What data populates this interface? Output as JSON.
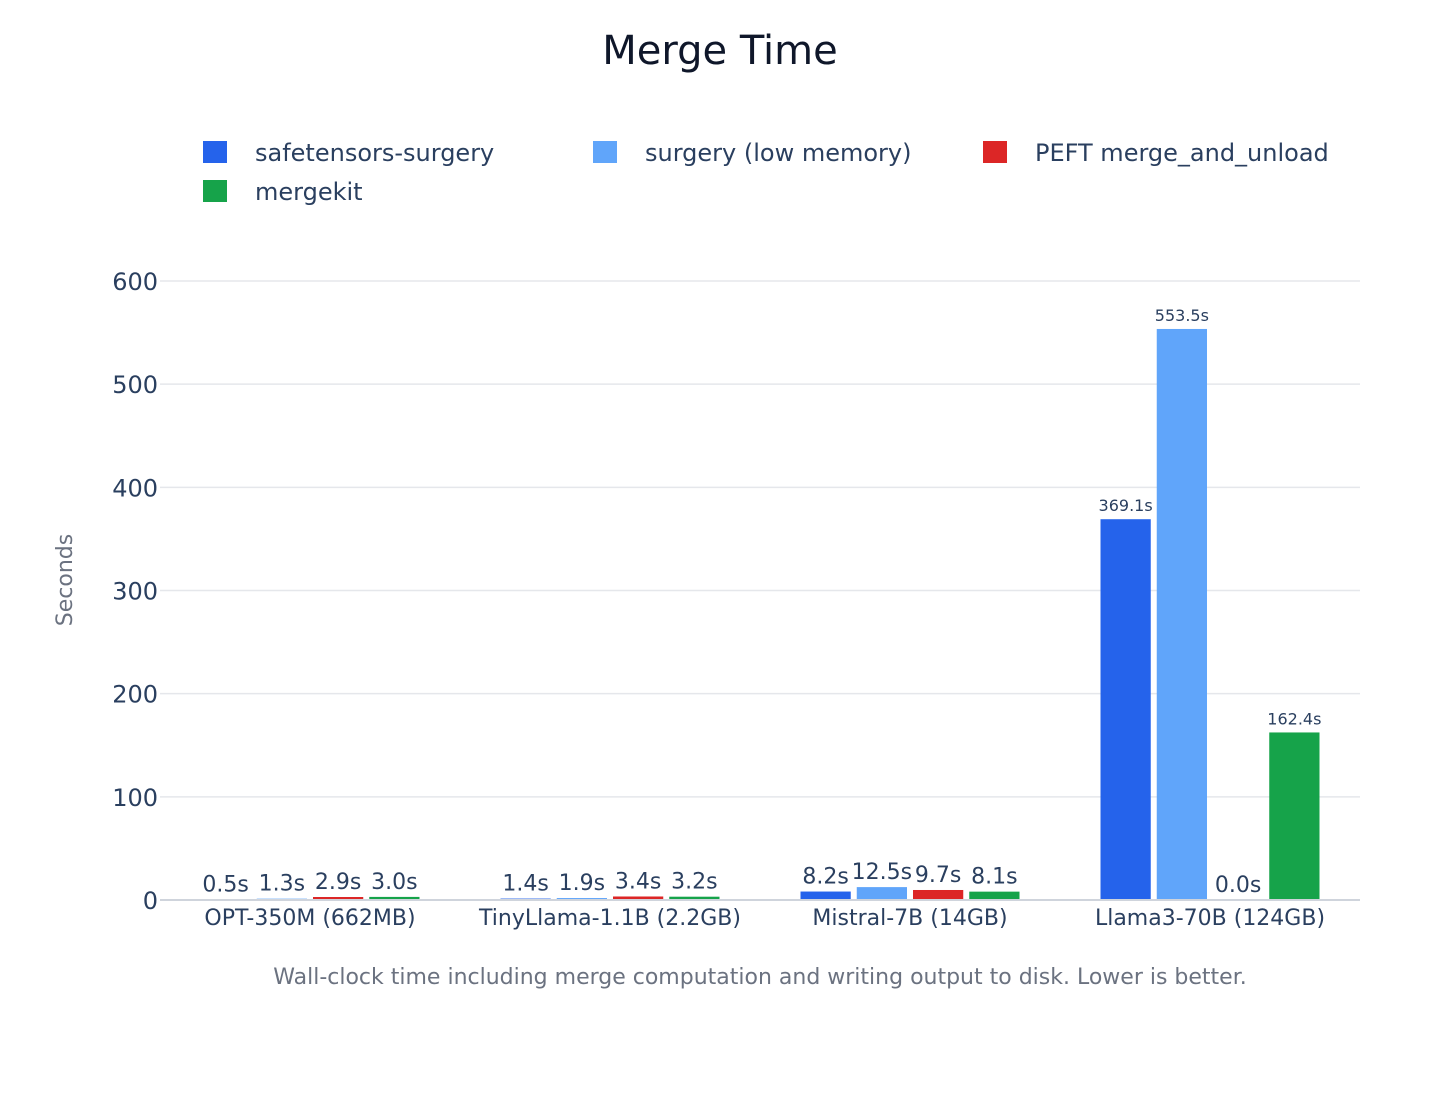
{
  "chart_data": {
    "type": "bar",
    "title": "Merge Time",
    "ylabel": "Seconds",
    "xlabel": "Wall-clock time including merge computation and writing output to disk. Lower is better.",
    "categories": [
      "OPT-350M (662MB)",
      "TinyLlama-1.1B (2.2GB)",
      "Mistral-7B (14GB)",
      "Llama3-70B (124GB)"
    ],
    "ylim": [
      0,
      600
    ],
    "yticks": [
      0,
      100,
      200,
      300,
      400,
      500,
      600
    ],
    "grid": true,
    "legend_position": "top",
    "series": [
      {
        "name": "safetensors-surgery",
        "color": "#2563eb",
        "values": [
          0.5,
          1.4,
          8.2,
          369.1
        ],
        "labels": [
          "0.5s",
          "1.4s",
          "8.2s",
          "369.1s"
        ]
      },
      {
        "name": "surgery (low memory)",
        "color": "#60a5fa",
        "values": [
          1.3,
          1.9,
          12.5,
          553.5
        ],
        "labels": [
          "1.3s",
          "1.9s",
          "12.5s",
          "553.5s"
        ]
      },
      {
        "name": "PEFT merge_and_unload",
        "color": "#dc2626",
        "values": [
          2.9,
          3.4,
          9.7,
          0.0
        ],
        "labels": [
          "2.9s",
          "3.4s",
          "9.7s",
          "0.0s"
        ]
      },
      {
        "name": "mergekit",
        "color": "#16a34a",
        "values": [
          3.0,
          3.2,
          8.1,
          162.4
        ],
        "labels": [
          "3.0s",
          "3.2s",
          "8.1s",
          "162.4s"
        ]
      }
    ]
  }
}
